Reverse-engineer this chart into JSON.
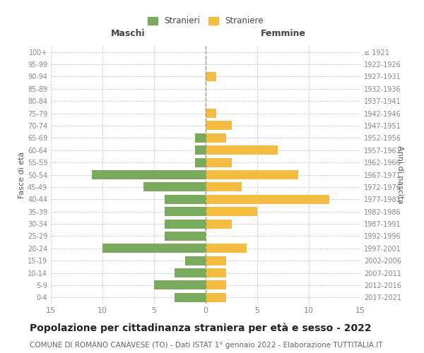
{
  "age_groups": [
    "0-4",
    "5-9",
    "10-14",
    "15-19",
    "20-24",
    "25-29",
    "30-34",
    "35-39",
    "40-44",
    "45-49",
    "50-54",
    "55-59",
    "60-64",
    "65-69",
    "70-74",
    "75-79",
    "80-84",
    "85-89",
    "90-94",
    "95-99",
    "100+"
  ],
  "birth_years": [
    "2017-2021",
    "2012-2016",
    "2007-2011",
    "2002-2006",
    "1997-2001",
    "1992-1996",
    "1987-1991",
    "1982-1986",
    "1977-1981",
    "1972-1976",
    "1967-1971",
    "1962-1966",
    "1957-1961",
    "1952-1956",
    "1947-1951",
    "1942-1946",
    "1937-1941",
    "1932-1936",
    "1927-1931",
    "1922-1926",
    "≤ 1921"
  ],
  "males": [
    3,
    5,
    3,
    2,
    10,
    4,
    4,
    4,
    4,
    6,
    11,
    1,
    1,
    1,
    0,
    0,
    0,
    0,
    0,
    0,
    0
  ],
  "females": [
    2,
    2,
    2,
    2,
    4,
    0,
    2.5,
    5,
    12,
    3.5,
    9,
    2.5,
    7,
    2,
    2.5,
    1,
    0,
    0,
    1,
    0,
    0
  ],
  "male_color": "#7aaa5e",
  "female_color": "#f5bc42",
  "title": "Popolazione per cittadinanza straniera per età e sesso - 2022",
  "subtitle": "COMUNE DI ROMANO CANAVESE (TO) - Dati ISTAT 1° gennaio 2022 - Elaborazione TUTTITALIA.IT",
  "xlabel_left": "Maschi",
  "xlabel_right": "Femmine",
  "ylabel_left": "Fasce di età",
  "ylabel_right": "Anni di nascita",
  "legend_male": "Stranieri",
  "legend_female": "Straniere",
  "xlim": 15,
  "background_color": "#ffffff",
  "grid_color": "#cccccc",
  "bar_height": 0.75,
  "title_fontsize": 10,
  "subtitle_fontsize": 7.5
}
